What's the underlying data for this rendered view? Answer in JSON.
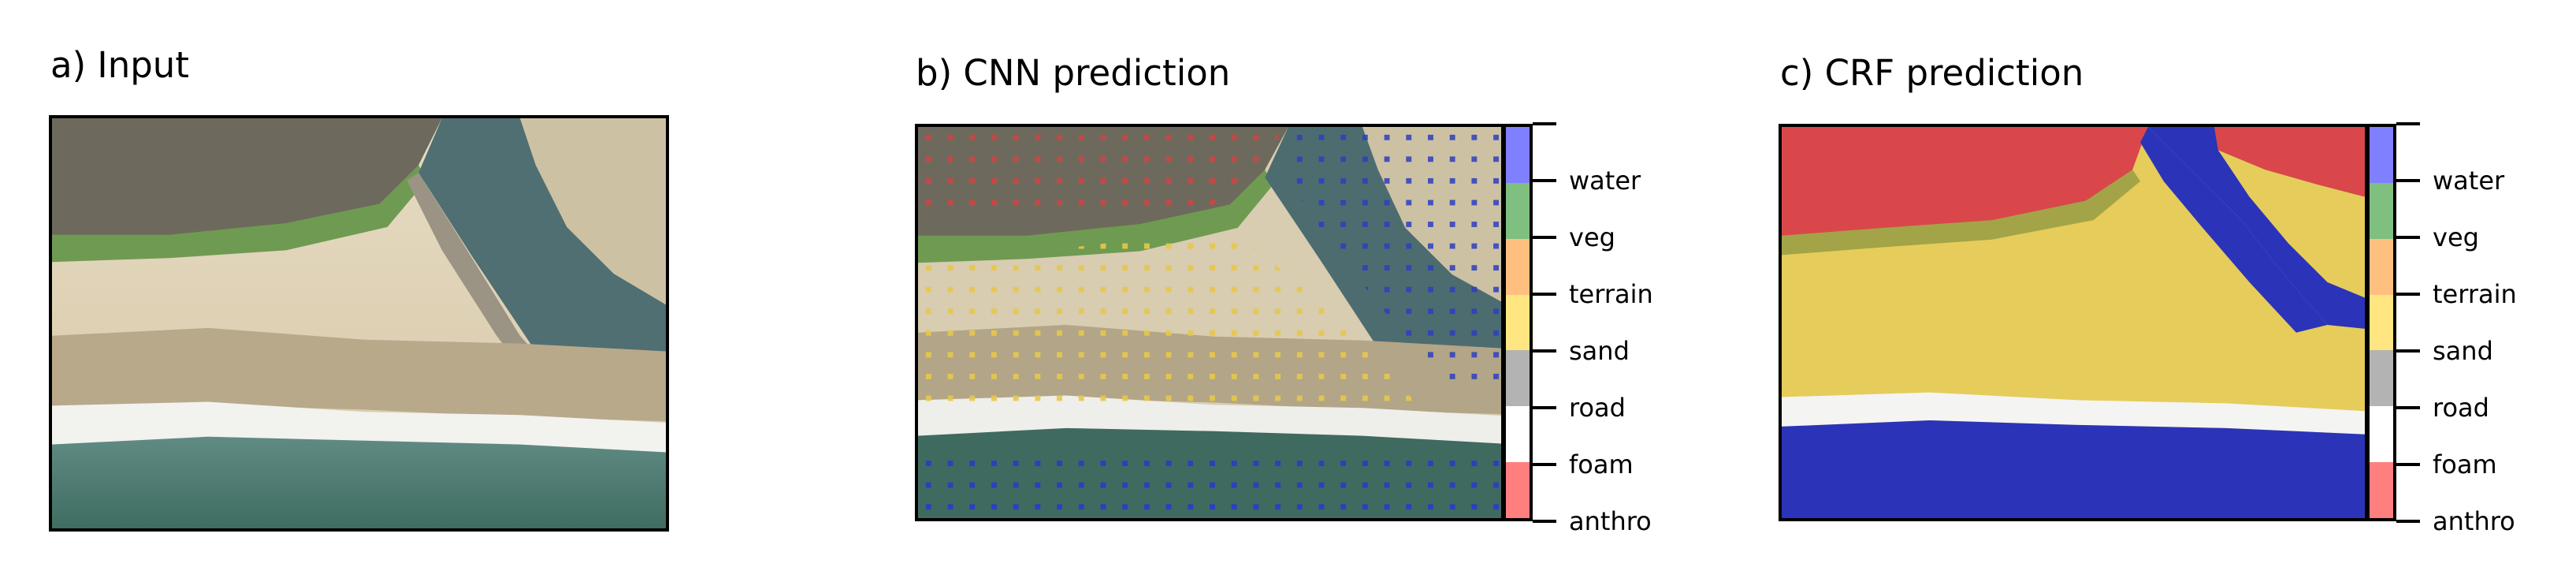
{
  "panels": {
    "input": {
      "title": "a) Input"
    },
    "cnn": {
      "title": "b) CNN prediction"
    },
    "crf": {
      "title": "c) CRF prediction"
    }
  },
  "colorbar": {
    "classes": [
      "water",
      "veg",
      "terrain",
      "sand",
      "road",
      "foam",
      "anthro"
    ],
    "colors": [
      "#8080ff",
      "#7fbf7f",
      "#ffbf7f",
      "#ffe680",
      "#b3b3b3",
      "#ffffff",
      "#ff7f7f"
    ]
  }
}
